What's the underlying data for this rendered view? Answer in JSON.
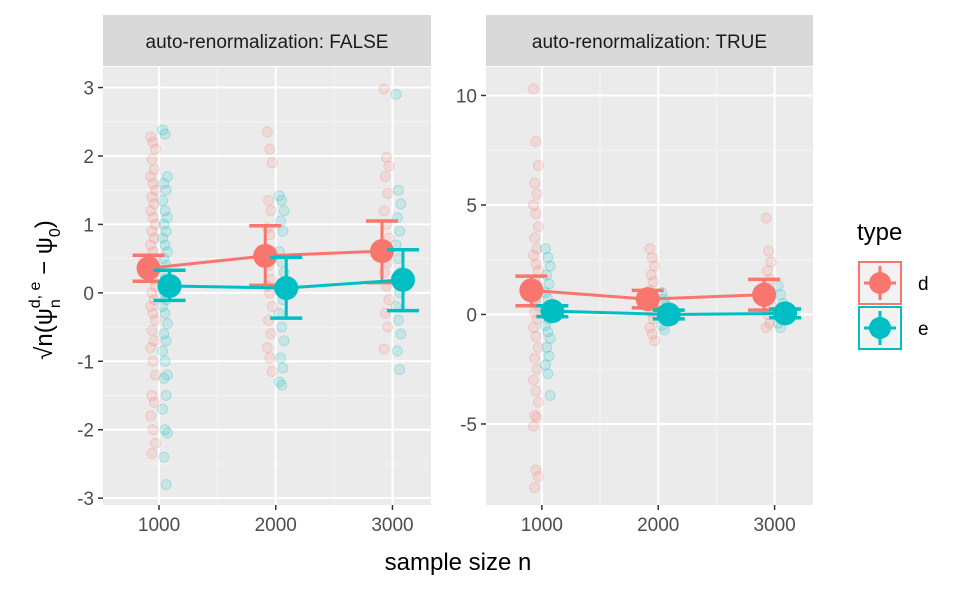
{
  "colors": {
    "d": "#F8766D",
    "e": "#00BFC4"
  },
  "xlabel": "sample size n",
  "legend": {
    "title": "type",
    "items": [
      {
        "key": "d",
        "label": "d"
      },
      {
        "key": "e",
        "label": "e"
      }
    ]
  },
  "chart_data": [
    {
      "type": "scatter",
      "strip": "auto-renormalization: FALSE",
      "x": [
        1000,
        2000,
        3000
      ],
      "xlim": [
        520,
        3330
      ],
      "ylim": [
        -3.1,
        3.3
      ],
      "yticks": [
        -3,
        -2,
        -1,
        0,
        1,
        2,
        3
      ],
      "xticks": [
        1000,
        2000,
        3000
      ],
      "grid": true,
      "summary": [
        {
          "series": "d",
          "mean": [
            0.36,
            0.54,
            0.61
          ],
          "lower": [
            0.17,
            0.11,
            0.15
          ],
          "upper": [
            0.55,
            0.98,
            1.05
          ]
        },
        {
          "series": "e",
          "mean": [
            0.1,
            0.07,
            0.19
          ],
          "lower": [
            -0.11,
            -0.37,
            -0.26
          ],
          "upper": [
            0.33,
            0.52,
            0.63
          ]
        }
      ],
      "raw": {
        "d": [
          [
            2.28,
            2.2,
            2.1,
            1.95,
            1.8,
            1.7,
            1.6,
            1.5,
            1.4,
            1.3,
            1.2,
            1.1,
            1.0,
            0.9,
            0.8,
            0.7,
            0.6,
            0.5,
            0.45,
            0.4,
            0.3,
            0.2,
            0.1,
            0.0,
            -0.1,
            -0.2,
            -0.3,
            -0.4,
            -0.55,
            -0.7,
            -0.8,
            -1.0,
            -1.2,
            -1.5,
            -1.6,
            -1.8,
            -2.0,
            -2.2,
            -2.35
          ],
          [
            2.35,
            2.1,
            1.9,
            1.35,
            1.2,
            0.95,
            0.85,
            0.6,
            0.4,
            0.2,
            0.1,
            0.0,
            -0.2,
            -0.4,
            -0.6,
            -0.8,
            -0.95,
            -1.15
          ],
          [
            2.98,
            1.98,
            1.85,
            1.7,
            1.45,
            1.2,
            1.0,
            0.8,
            0.6,
            0.45,
            0.3,
            0.1,
            -0.1,
            -0.3,
            -0.5,
            -0.82
          ]
        ],
        "e": [
          [
            2.38,
            2.32,
            1.7,
            1.6,
            1.5,
            1.35,
            1.2,
            1.1,
            1.0,
            0.9,
            0.8,
            0.7,
            0.6,
            0.5,
            0.4,
            0.3,
            0.2,
            0.1,
            0.0,
            -0.1,
            -0.2,
            -0.3,
            -0.45,
            -0.6,
            -0.7,
            -0.85,
            -1.0,
            -1.2,
            -1.25,
            -1.5,
            -1.7,
            -2.0,
            -2.05,
            -2.4,
            -2.8
          ],
          [
            1.42,
            1.35,
            1.2,
            1.05,
            0.9,
            0.6,
            0.45,
            0.3,
            0.1,
            -0.1,
            -0.3,
            -0.5,
            -0.7,
            -0.95,
            -1.1,
            -1.3,
            -1.35
          ],
          [
            2.9,
            1.5,
            1.3,
            1.1,
            0.9,
            0.7,
            0.5,
            0.3,
            0.2,
            0.0,
            -0.2,
            -0.4,
            -0.6,
            -0.85,
            -1.12
          ]
        ]
      }
    },
    {
      "type": "scatter",
      "strip": "auto-renormalization: TRUE",
      "x": [
        1000,
        2000,
        3000
      ],
      "xlim": [
        520,
        3330
      ],
      "ylim": [
        -8.7,
        11.3
      ],
      "yticks": [
        -5,
        0,
        5,
        10
      ],
      "xticks": [
        1000,
        2000,
        3000
      ],
      "grid": true,
      "summary": [
        {
          "series": "d",
          "mean": [
            1.1,
            0.7,
            0.9
          ],
          "lower": [
            0.4,
            0.3,
            0.2
          ],
          "upper": [
            1.75,
            1.1,
            1.6
          ]
        },
        {
          "series": "e",
          "mean": [
            0.15,
            0.0,
            0.05
          ],
          "lower": [
            -0.1,
            -0.2,
            -0.15
          ],
          "upper": [
            0.4,
            0.2,
            0.25
          ]
        }
      ],
      "raw": {
        "d": [
          [
            10.3,
            7.9,
            6.8,
            6.0,
            5.5,
            5.0,
            4.6,
            4.0,
            3.5,
            3.0,
            2.7,
            2.3,
            2.0,
            1.6,
            1.3,
            1.0,
            0.7,
            0.4,
            0.1,
            -0.2,
            -0.6,
            -1.0,
            -1.5,
            -2.0,
            -2.5,
            -3.0,
            -3.5,
            -4.0,
            -4.6,
            -4.7,
            -5.1,
            -7.1,
            -7.4,
            -7.9
          ],
          [
            3.0,
            2.6,
            2.2,
            1.8,
            1.5,
            1.1,
            0.8,
            0.4,
            0.1,
            -0.2,
            -0.6,
            -0.9,
            -1.2
          ],
          [
            4.4,
            2.9,
            2.4,
            2.0,
            1.6,
            1.2,
            0.8,
            0.4,
            0.0,
            -0.4,
            -0.6
          ]
        ],
        "e": [
          [
            3.0,
            2.6,
            2.2,
            1.8,
            1.4,
            1.0,
            0.7,
            0.4,
            0.1,
            -0.2,
            -0.5,
            -0.8,
            -1.1,
            -1.5,
            -1.9,
            -2.3,
            -2.7,
            -3.7
          ],
          [
            1.0,
            0.7,
            0.4,
            0.1,
            -0.2,
            -0.5,
            -0.7
          ],
          [
            1.3,
            0.9,
            0.5,
            0.2,
            -0.1,
            -0.4,
            -0.6
          ]
        ]
      }
    }
  ]
}
